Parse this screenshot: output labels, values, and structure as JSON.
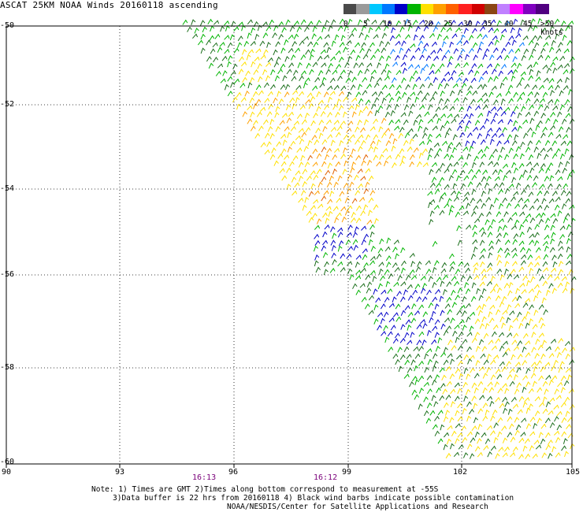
{
  "header": {
    "title": "ASCAT 25KM NOAA Winds 20160118 ascending"
  },
  "legend": {
    "colors": [
      "#4a4a4a",
      "#9a9a9a",
      "#00c8ff",
      "#0078ff",
      "#0000c8",
      "#00b400",
      "#ffe000",
      "#ffa000",
      "#ff6000",
      "#ff2020",
      "#d00000",
      "#8b4513",
      "#c080ff",
      "#ff00ff",
      "#8000c0",
      "#500080"
    ],
    "labels": [
      "0",
      "5",
      "10",
      "15",
      "20",
      "25",
      "30",
      "35",
      "40",
      "45",
      ">50 knots"
    ]
  },
  "axes": {
    "y_labels": [
      "-50",
      "-52",
      "-54",
      "-56",
      "-58",
      "-60"
    ],
    "x_labels": [
      "90",
      "93",
      "96",
      "99",
      "102",
      "105"
    ]
  },
  "times": [
    "16:13",
    "16:12"
  ],
  "notes": {
    "line1": "Note: 1) Times are GMT 2)Times along bottom correspond to measurement at -55S",
    "line2": "3)Data buffer is 22 hrs from 20160118 4) Black wind barbs indicate possible contamination",
    "line3": "NOAA/NESDIS/Center for Satellite Applications and Research"
  }
}
